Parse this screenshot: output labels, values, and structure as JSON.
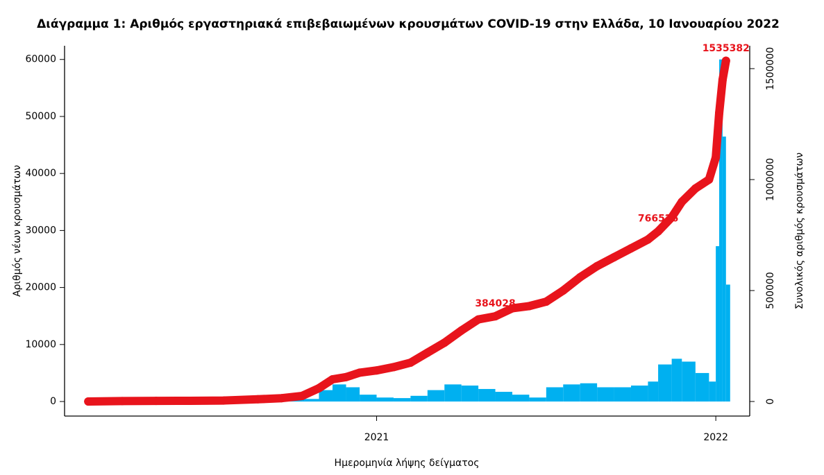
{
  "chart_data": {
    "type": "bar-line",
    "title": "Διάγραμμα 1: Αριθμός εργαστηριακά επιβεβαιωμένων κρουσμάτων COVID-19 στην Ελλάδα, 10 Ιανουαρίου 2022",
    "x_label": "Ημερομηνία λήψης δείγματος",
    "y_label": "Αριθμός νέων κρουσμάτων",
    "y2_label": "Συνολικός αριθμός κρουσμάτων",
    "x": [
      2020.15,
      2020.25,
      2020.35,
      2020.45,
      2020.55,
      2020.65,
      2020.72,
      2020.78,
      2020.83,
      2020.87,
      2020.91,
      2020.95,
      2021.0,
      2021.05,
      2021.1,
      2021.15,
      2021.2,
      2021.25,
      2021.3,
      2021.35,
      2021.4,
      2021.45,
      2021.5,
      2021.55,
      2021.6,
      2021.65,
      2021.7,
      2021.75,
      2021.8,
      2021.83,
      2021.87,
      2021.9,
      2021.94,
      2021.98,
      2022.0,
      2022.01,
      2022.02,
      2022.03
    ],
    "series": [
      {
        "color": "#00b0f0",
        "values": [
          10,
          100,
          20,
          20,
          50,
          250,
          300,
          450,
          2000,
          3000,
          2500,
          1200,
          700,
          600,
          1000,
          2000,
          3000,
          2800,
          2200,
          1700,
          1200,
          700,
          2500,
          3000,
          3200,
          2500,
          2500,
          2800,
          3500,
          6500,
          7500,
          7000,
          5000,
          3500,
          27248,
          60000,
          46479,
          20507
        ]
      },
      {
        "color": "#e8141c",
        "axis": "y2",
        "values": [
          100,
          2000,
          2800,
          3300,
          4500,
          10000,
          15000,
          25000,
          60000,
          100000,
          110000,
          130000,
          140000,
          155000,
          175000,
          220000,
          265000,
          320000,
          370000,
          384028,
          420000,
          430000,
          450000,
          500000,
          560000,
          610000,
          650000,
          690000,
          730000,
          766526,
          830000,
          900000,
          960000,
          1000000,
          1100000,
          1300000,
          1450000,
          1535382
        ]
      }
    ],
    "annotations": [
      {
        "x": 2021.35,
        "y": 384028
      },
      {
        "x": 2021.83,
        "y": 766526
      },
      {
        "x": 2022.03,
        "y": 1535382
      }
    ],
    "xlim": [
      2020.08,
      2022.1
    ],
    "xticks": [
      2021,
      2022
    ],
    "ylim": [
      -2550,
      62400
    ],
    "yticks": [
      0,
      10000,
      20000,
      30000,
      40000,
      50000,
      60000
    ],
    "y2lim": [
      -65600,
      1603000
    ],
    "y2ticks": [
      0,
      500000,
      1000000,
      1500000
    ]
  }
}
